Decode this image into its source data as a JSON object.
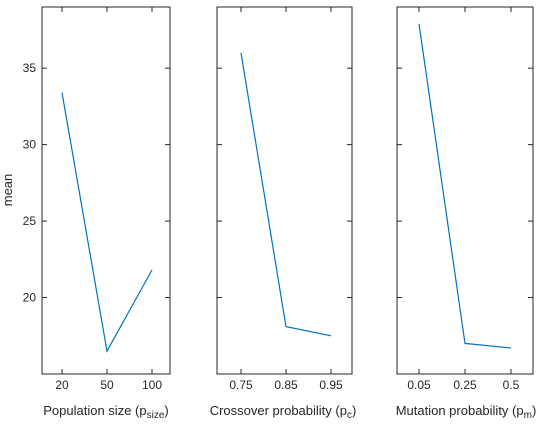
{
  "colors": {
    "line": "#0072BD",
    "axis": "#262626"
  },
  "chart_data": [
    {
      "type": "line",
      "xlabel": "Population size",
      "xlabel_sub": "size",
      "ylabel": "mean",
      "x_ticks": [
        "20",
        "50",
        "100"
      ],
      "y_ticks": [
        "20",
        "25",
        "30",
        "35"
      ],
      "ylim": [
        15,
        39
      ],
      "y_tick_values": [
        20,
        25,
        30,
        35
      ],
      "values": [
        33.4,
        16.5,
        21.8
      ],
      "show_y_ticks": true
    },
    {
      "type": "line",
      "xlabel": "Crossover probability",
      "xlabel_sub": "c",
      "ylabel": "",
      "x_ticks": [
        "0.75",
        "0.85",
        "0.95"
      ],
      "y_ticks": [],
      "ylim": [
        15,
        39
      ],
      "y_tick_values": [
        20,
        25,
        30,
        35
      ],
      "values": [
        36.0,
        18.1,
        17.5
      ],
      "show_y_ticks": false
    },
    {
      "type": "line",
      "xlabel": "Mutation probability",
      "xlabel_sub": "m",
      "ylabel": "",
      "x_ticks": [
        "0.05",
        "0.25",
        "0.5"
      ],
      "y_ticks": [],
      "ylim": [
        15,
        39
      ],
      "y_tick_values": [
        20,
        25,
        30,
        35
      ],
      "values": [
        37.9,
        17.0,
        16.7
      ],
      "show_y_ticks": false
    }
  ]
}
